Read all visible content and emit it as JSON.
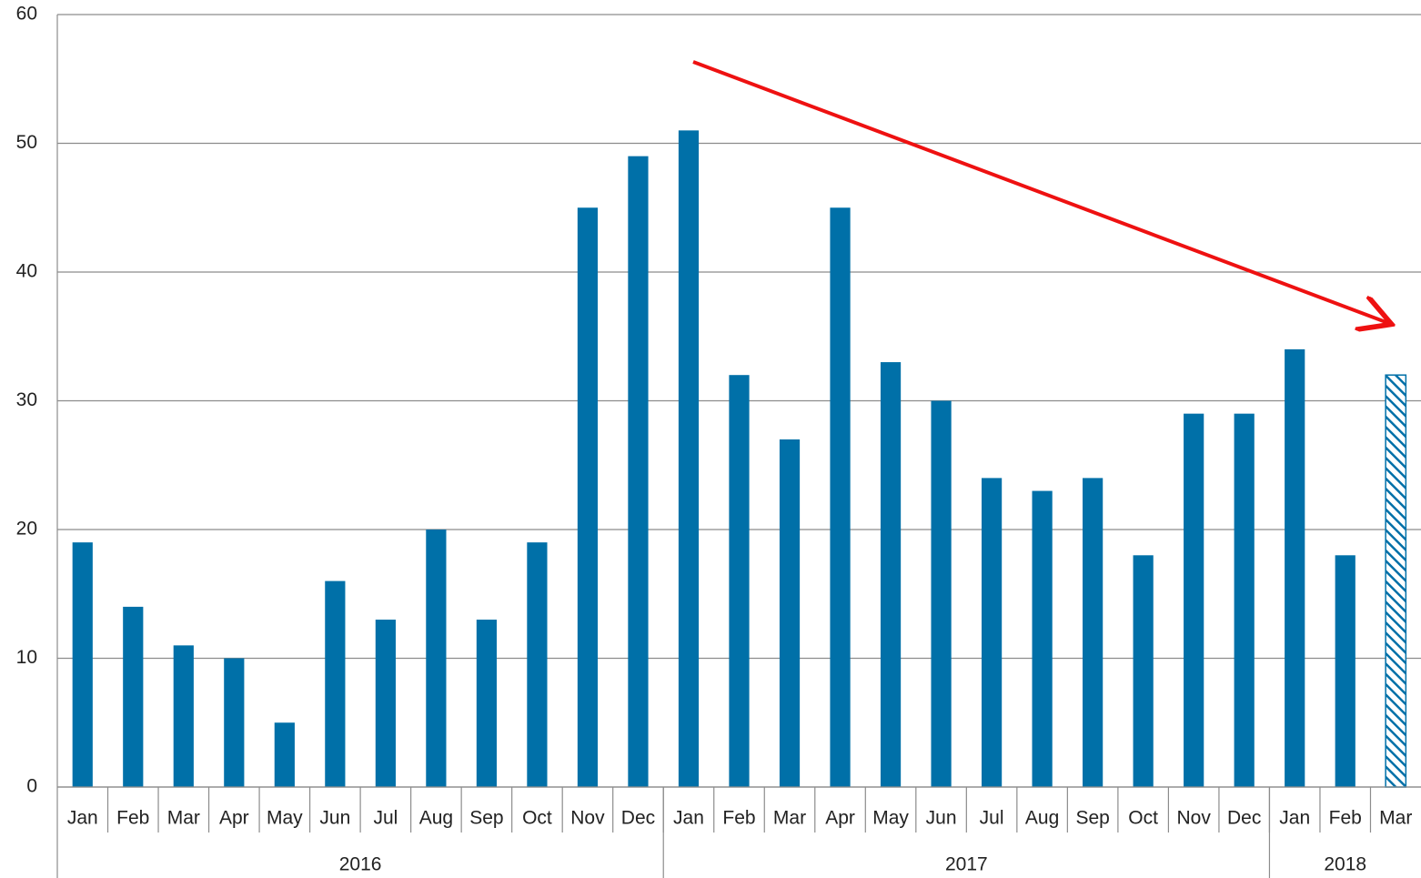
{
  "chart_data": {
    "type": "bar",
    "categories": [
      "Jan",
      "Feb",
      "Mar",
      "Apr",
      "May",
      "Jun",
      "Jul",
      "Aug",
      "Sep",
      "Oct",
      "Nov",
      "Dec",
      "Jan",
      "Feb",
      "Mar",
      "Apr",
      "May",
      "Jun",
      "Jul",
      "Aug",
      "Sep",
      "Oct",
      "Nov",
      "Dec",
      "Jan",
      "Feb",
      "Mar"
    ],
    "values": [
      19,
      14,
      11,
      10,
      5,
      16,
      13,
      20,
      13,
      19,
      45,
      49,
      51,
      32,
      27,
      45,
      33,
      30,
      24,
      23,
      24,
      18,
      29,
      29,
      34,
      18,
      32
    ],
    "patterns": [
      "solid",
      "solid",
      "solid",
      "solid",
      "solid",
      "solid",
      "solid",
      "solid",
      "solid",
      "solid",
      "solid",
      "solid",
      "solid",
      "solid",
      "solid",
      "solid",
      "solid",
      "solid",
      "solid",
      "solid",
      "solid",
      "solid",
      "solid",
      "solid",
      "solid",
      "solid",
      "hatched"
    ],
    "groups": [
      {
        "label": "2016",
        "count": 12
      },
      {
        "label": "2017",
        "count": 12
      },
      {
        "label": "2018",
        "count": 3
      }
    ],
    "color": "#0070a8",
    "ylim": [
      0,
      60
    ],
    "yticks": [
      0,
      10,
      20,
      30,
      40,
      50,
      60
    ],
    "grid": true
  }
}
